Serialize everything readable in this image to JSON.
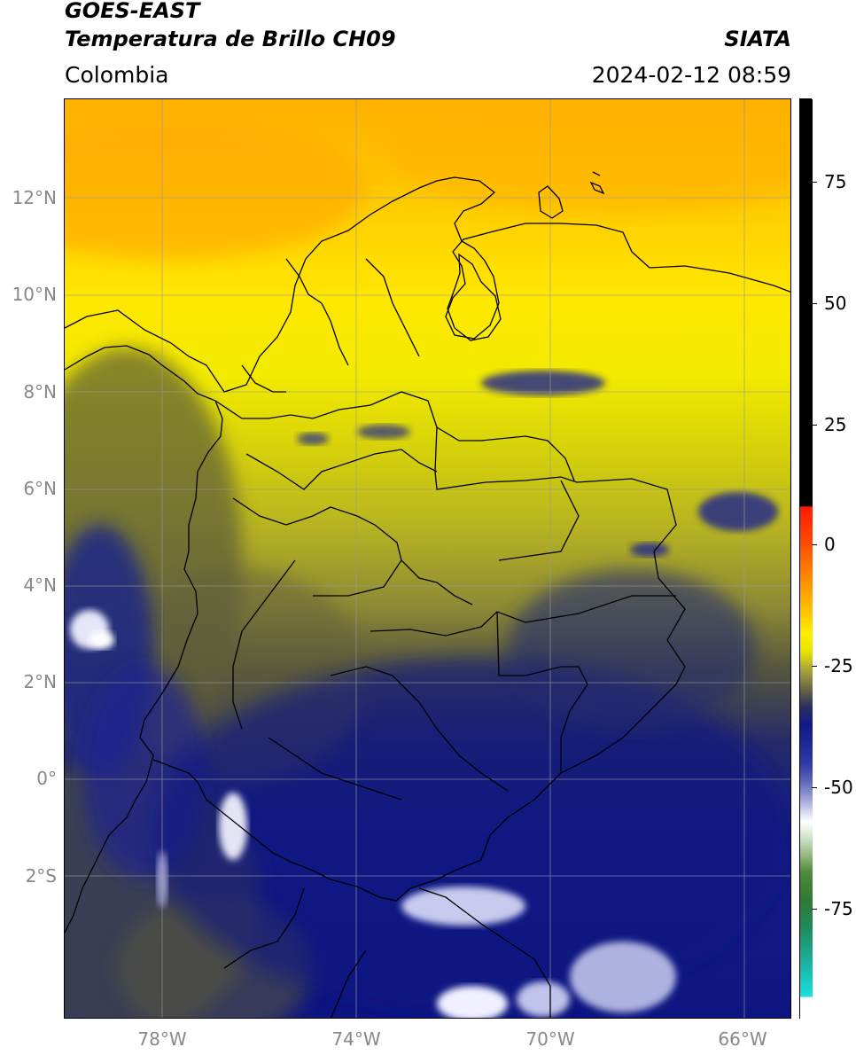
{
  "header": {
    "title_line1": "GOES-EAST",
    "title_line2": "Temperatura de Brillo CH09",
    "brand": "SIATA",
    "region": "Colombia",
    "timestamp": "2024-02-12 08:59"
  },
  "axes": {
    "lat_labels": [
      "12°N",
      "10°N",
      "8°N",
      "6°N",
      "4°N",
      "2°N",
      "0°",
      "2°S"
    ],
    "lon_labels": [
      "78°W",
      "74°W",
      "70°W",
      "66°W"
    ]
  },
  "colorbar": {
    "ticks": [
      "75",
      "50",
      "25",
      "0",
      "-25",
      "-50",
      "-75"
    ],
    "colors": {
      "hot": "#ffa500",
      "warm": "#ffe800",
      "olive": "#7d7a35",
      "navy": "#0d1581",
      "white": "#ffffff",
      "green": "#2f7d1f",
      "cyan": "#1ad9d9",
      "red": "#ff2000",
      "black": "#000000"
    }
  }
}
